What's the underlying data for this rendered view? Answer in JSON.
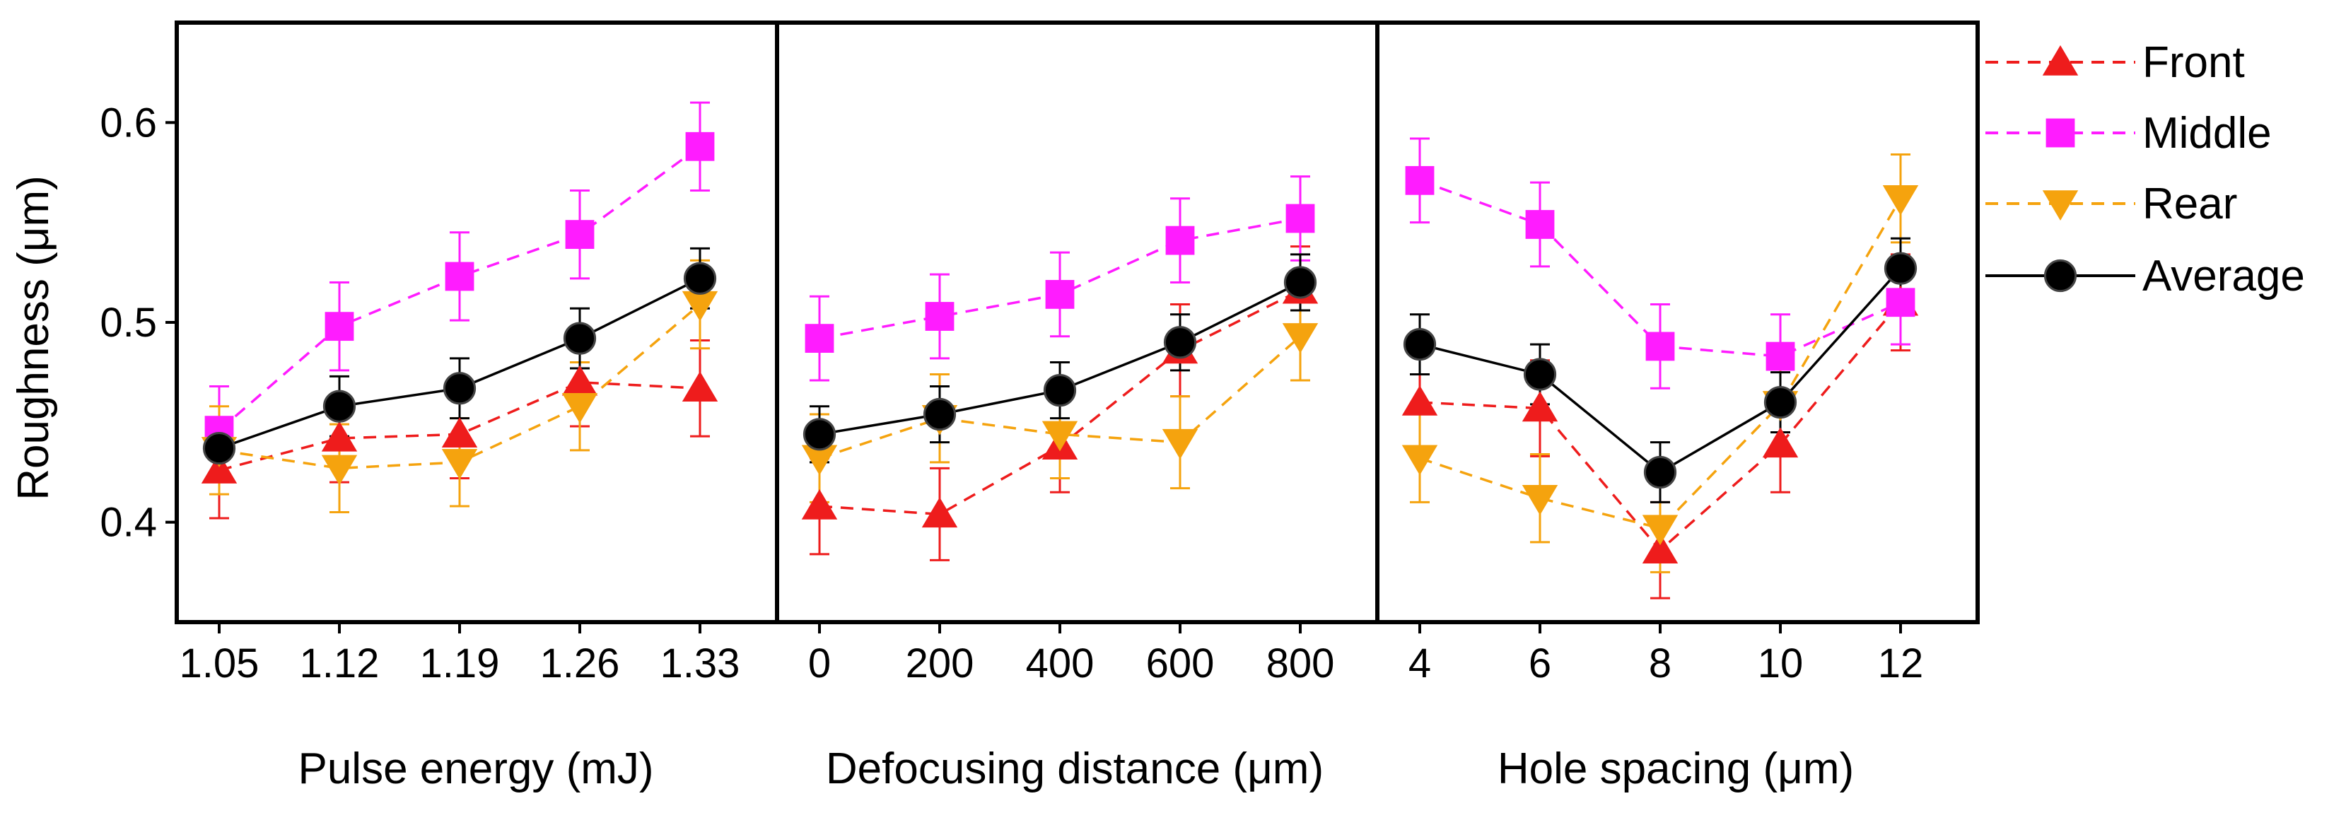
{
  "chart_data": {
    "type": "line",
    "ylabel": "Roughness (μm)",
    "ylim": [
      0.35,
      0.65
    ],
    "yticks": [
      0.4,
      0.5,
      0.6
    ],
    "ytick_labels": [
      "0.4",
      "0.5",
      "0.6"
    ],
    "legend_position": "right",
    "series_styles": [
      {
        "name": "Front",
        "color": "#ee1c1c",
        "marker": "triangle-up",
        "dashed": true
      },
      {
        "name": "Middle",
        "color": "#ff1cff",
        "marker": "square",
        "dashed": true
      },
      {
        "name": "Rear",
        "color": "#f5a30e",
        "marker": "triangle-down",
        "dashed": true
      },
      {
        "name": "Average",
        "color": "#000000",
        "marker": "circle",
        "dashed": false
      }
    ],
    "panels": [
      {
        "xlabel": "Pulse energy (mJ)",
        "categories": [
          "1.05",
          "1.12",
          "1.19",
          "1.26",
          "1.33"
        ],
        "series": [
          {
            "name": "Front",
            "values": [
              0.426,
              0.442,
              0.444,
              0.47,
              0.467
            ],
            "errors": [
              0.024,
              0.022,
              0.022,
              0.022,
              0.024
            ]
          },
          {
            "name": "Middle",
            "values": [
              0.446,
              0.498,
              0.523,
              0.544,
              0.588
            ],
            "errors": [
              0.022,
              0.022,
              0.022,
              0.022,
              0.022
            ]
          },
          {
            "name": "Rear",
            "values": [
              0.436,
              0.427,
              0.43,
              0.458,
              0.509
            ],
            "errors": [
              0.022,
              0.022,
              0.022,
              0.022,
              0.022
            ]
          },
          {
            "name": "Average",
            "values": [
              0.437,
              0.458,
              0.467,
              0.492,
              0.522
            ],
            "errors": [
              0.015,
              0.015,
              0.015,
              0.015,
              0.015
            ]
          }
        ]
      },
      {
        "xlabel": "Defocusing distance (μm)",
        "categories": [
          "0",
          "200",
          "400",
          "600",
          "800"
        ],
        "series": [
          {
            "name": "Front",
            "values": [
              0.408,
              0.404,
              0.438,
              0.486,
              0.516
            ],
            "errors": [
              0.024,
              0.023,
              0.023,
              0.023,
              0.022
            ]
          },
          {
            "name": "Middle",
            "values": [
              0.492,
              0.503,
              0.514,
              0.541,
              0.552
            ],
            "errors": [
              0.021,
              0.021,
              0.021,
              0.021,
              0.021
            ]
          },
          {
            "name": "Rear",
            "values": [
              0.432,
              0.452,
              0.444,
              0.44,
              0.493
            ],
            "errors": [
              0.022,
              0.022,
              0.022,
              0.023,
              0.022
            ]
          },
          {
            "name": "Average",
            "values": [
              0.444,
              0.454,
              0.466,
              0.49,
              0.52
            ],
            "errors": [
              0.014,
              0.014,
              0.014,
              0.014,
              0.014
            ]
          }
        ]
      },
      {
        "xlabel": "Hole spacing (μm)",
        "categories": [
          "4",
          "6",
          "8",
          "10",
          "12"
        ],
        "series": [
          {
            "name": "Front",
            "values": [
              0.46,
              0.457,
              0.386,
              0.439,
              0.51
            ],
            "errors": [
              0.024,
              0.024,
              0.024,
              0.024,
              0.024
            ]
          },
          {
            "name": "Middle",
            "values": [
              0.571,
              0.549,
              0.488,
              0.483,
              0.51
            ],
            "errors": [
              0.021,
              0.021,
              0.021,
              0.021,
              0.021
            ]
          },
          {
            "name": "Rear",
            "values": [
              0.432,
              0.412,
              0.397,
              0.459,
              0.562
            ],
            "errors": [
              0.022,
              0.022,
              0.022,
              0.022,
              0.022
            ]
          },
          {
            "name": "Average",
            "values": [
              0.489,
              0.474,
              0.425,
              0.46,
              0.527
            ],
            "errors": [
              0.015,
              0.015,
              0.015,
              0.015,
              0.015
            ]
          }
        ]
      }
    ]
  }
}
